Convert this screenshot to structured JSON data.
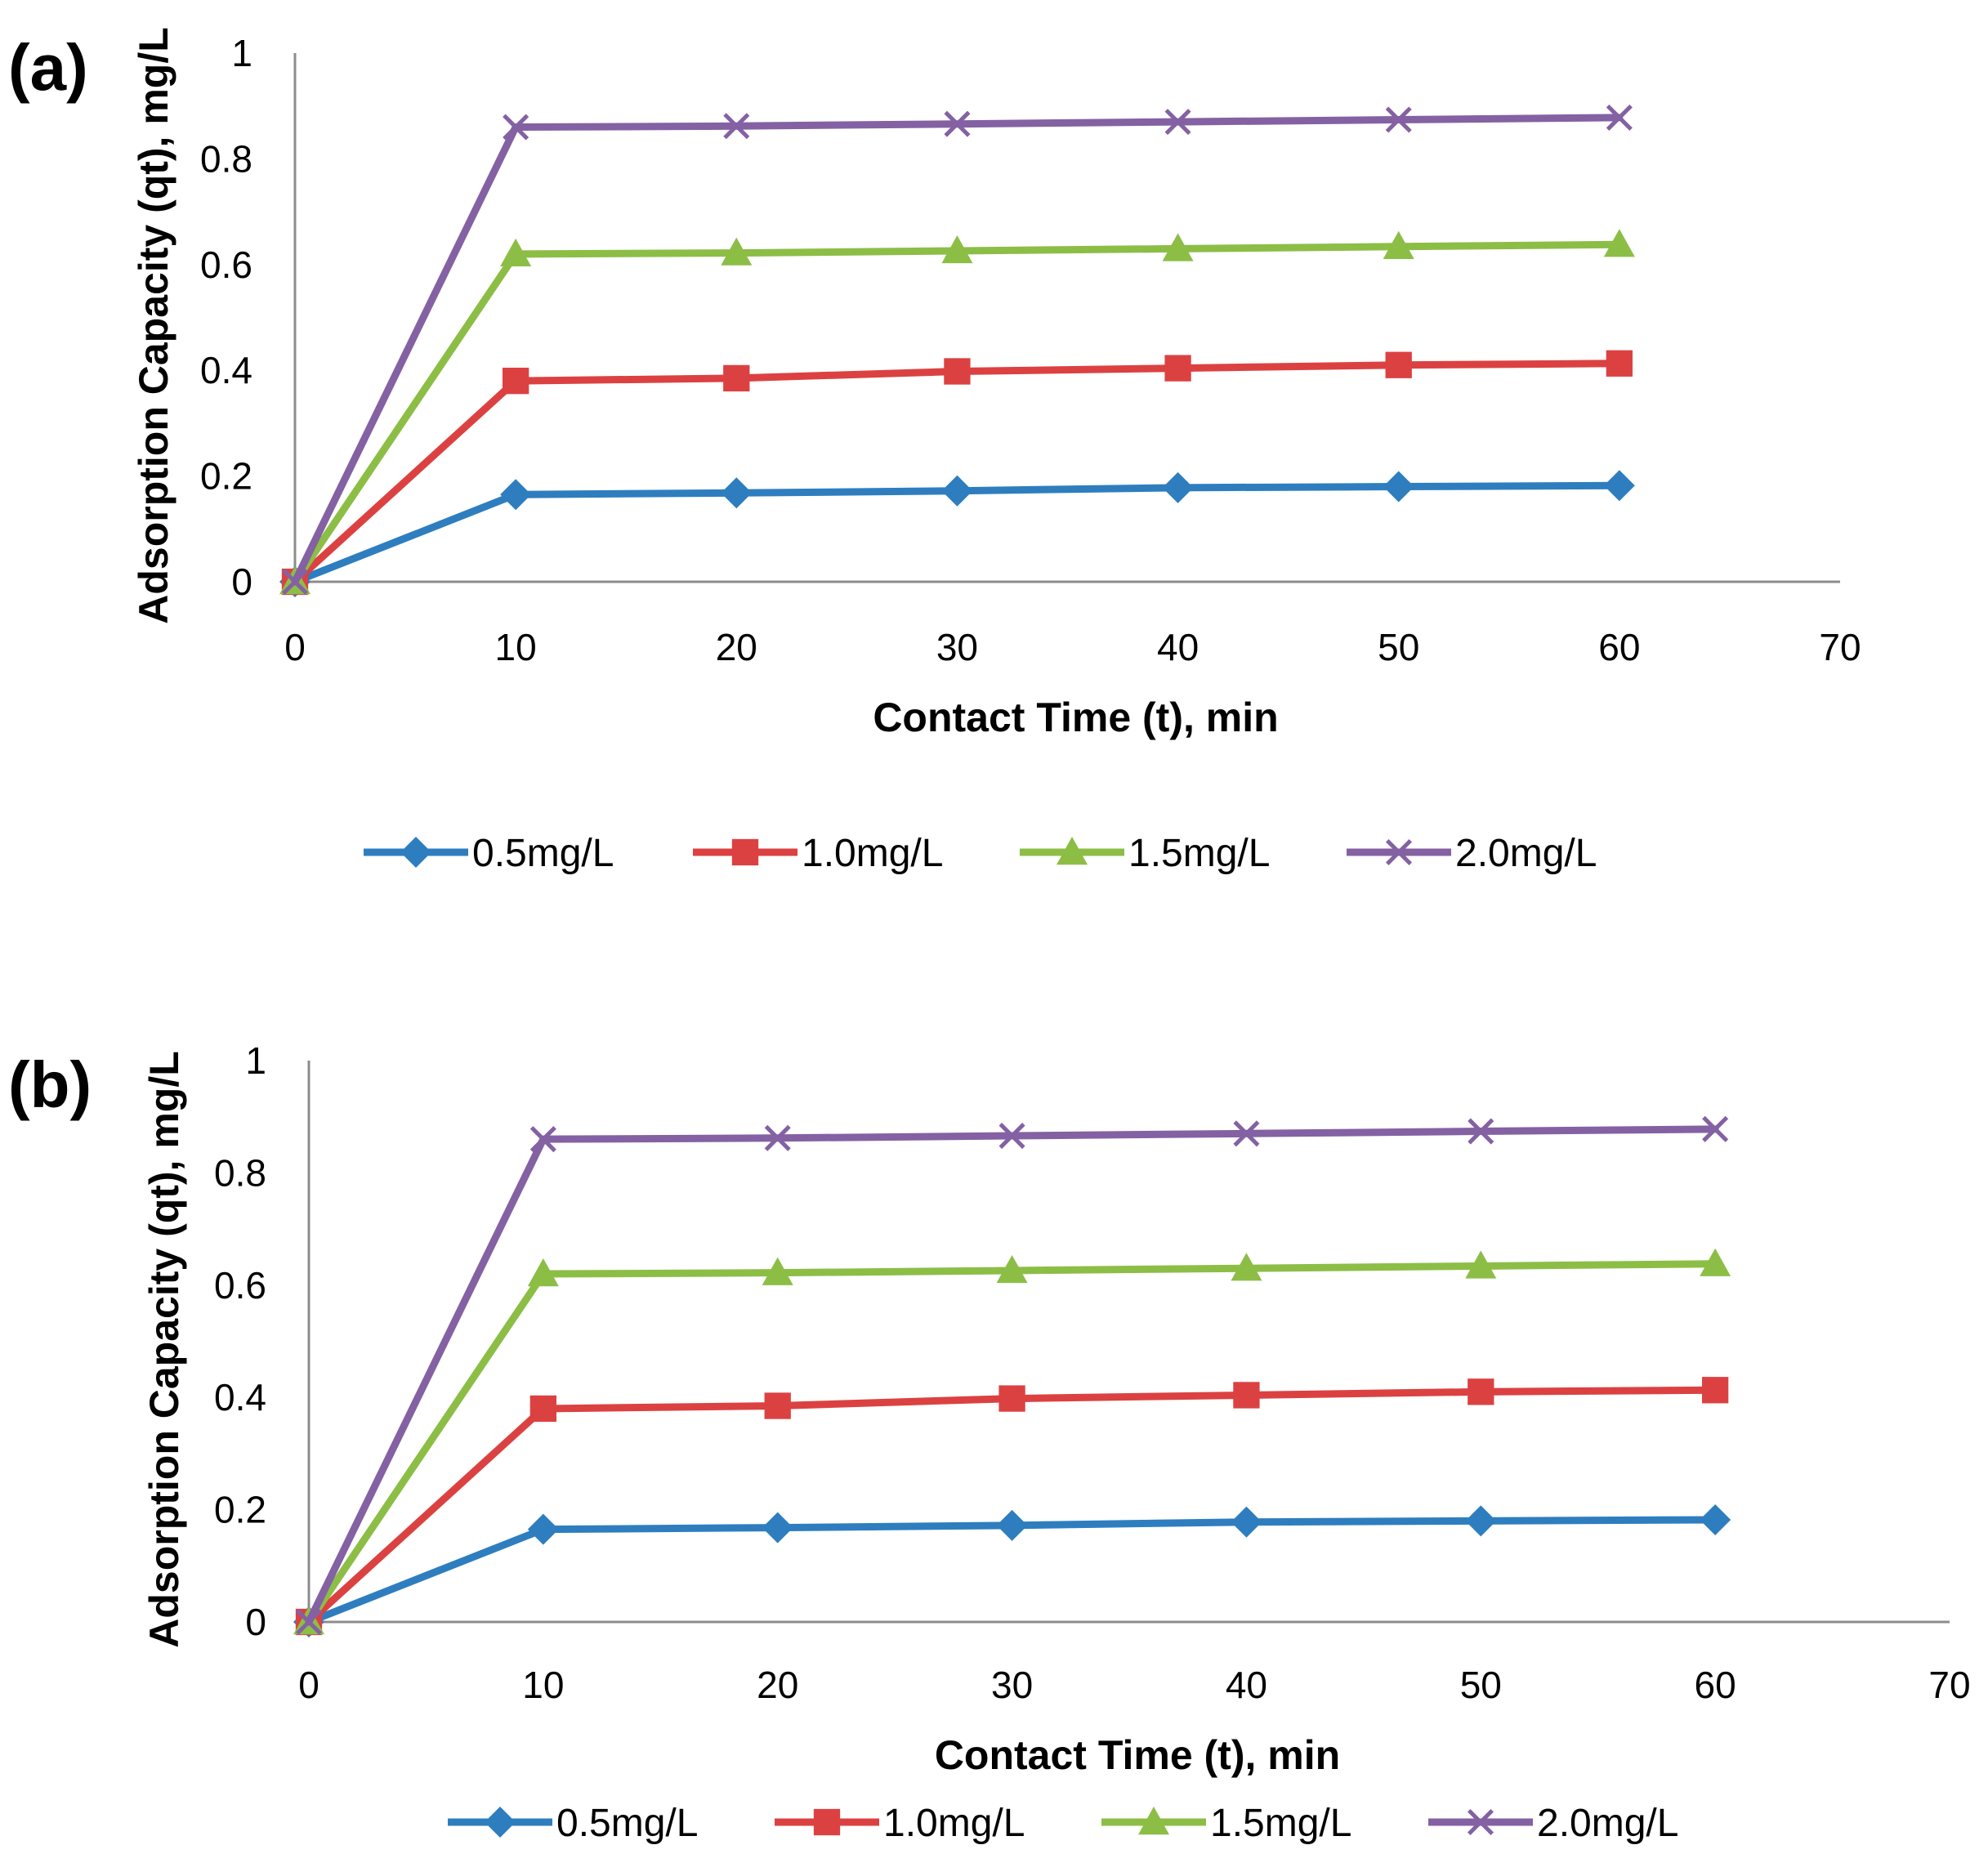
{
  "chart_data": [
    {
      "type": "line",
      "panel_label": "(a)",
      "xlabel": "Contact Time (t), min",
      "ylabel": "Adsorption Capacity (qt), mg/L",
      "xlim": [
        0,
        70
      ],
      "ylim": [
        0,
        1
      ],
      "x_ticks": [
        "0",
        "10",
        "20",
        "30",
        "40",
        "50",
        "60",
        "70"
      ],
      "y_ticks": [
        "0",
        "0.2",
        "0.4",
        "0.6",
        "0.8",
        "1"
      ],
      "grid": false,
      "legend_position": "bottom",
      "x": [
        0,
        10,
        20,
        30,
        40,
        50,
        60
      ],
      "series": [
        {
          "name": "0.5mg/L",
          "color": "#2e7ebf",
          "marker": "diamond",
          "values": [
            0,
            0.165,
            0.168,
            0.172,
            0.178,
            0.18,
            0.182
          ]
        },
        {
          "name": "1.0mg/L",
          "color": "#dc4141",
          "marker": "square",
          "values": [
            0,
            0.38,
            0.385,
            0.398,
            0.404,
            0.41,
            0.413
          ]
        },
        {
          "name": "1.5mg/L",
          "color": "#8cbe46",
          "marker": "triangle",
          "values": [
            0,
            0.62,
            0.622,
            0.626,
            0.63,
            0.634,
            0.638
          ]
        },
        {
          "name": "2.0mg/L",
          "color": "#8461a3",
          "marker": "x",
          "values": [
            0,
            0.86,
            0.862,
            0.866,
            0.87,
            0.874,
            0.878
          ]
        }
      ]
    },
    {
      "type": "line",
      "panel_label": "(b)",
      "xlabel": "Contact Time (t), min",
      "ylabel": "Adsorption Capacity (qt), mg/L",
      "xlim": [
        0,
        70
      ],
      "ylim": [
        0,
        1
      ],
      "x_ticks": [
        "0",
        "10",
        "20",
        "30",
        "40",
        "50",
        "60",
        "70"
      ],
      "y_ticks": [
        "0",
        "0.2",
        "0.4",
        "0.6",
        "0.8",
        "1"
      ],
      "grid": false,
      "legend_position": "bottom",
      "x": [
        0,
        10,
        20,
        30,
        40,
        50,
        60
      ],
      "series": [
        {
          "name": "0.5mg/L",
          "color": "#2e7ebf",
          "marker": "diamond",
          "values": [
            0,
            0.165,
            0.168,
            0.172,
            0.178,
            0.18,
            0.182
          ]
        },
        {
          "name": "1.0mg/L",
          "color": "#dc4141",
          "marker": "square",
          "values": [
            0,
            0.38,
            0.385,
            0.398,
            0.404,
            0.41,
            0.413
          ]
        },
        {
          "name": "1.5mg/L",
          "color": "#8cbe46",
          "marker": "triangle",
          "values": [
            0,
            0.62,
            0.622,
            0.626,
            0.63,
            0.634,
            0.638
          ]
        },
        {
          "name": "2.0mg/L",
          "color": "#8461a3",
          "marker": "x",
          "values": [
            0,
            0.86,
            0.862,
            0.866,
            0.87,
            0.874,
            0.878
          ]
        }
      ]
    }
  ]
}
